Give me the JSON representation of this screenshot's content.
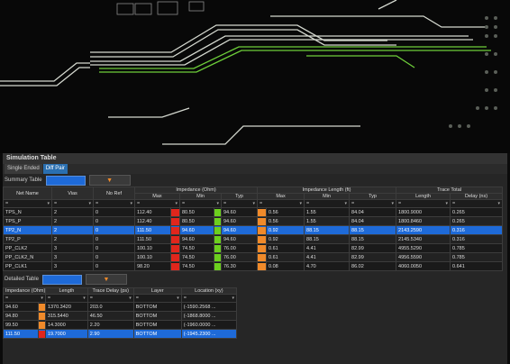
{
  "panel": {
    "title": "Simulation Table",
    "tabs": [
      {
        "label": "Single Ended"
      },
      {
        "label": "Diff Pair"
      }
    ],
    "summary_label": "Summary Table",
    "detailed_label": "Detailed Table"
  },
  "summary": {
    "headers": {
      "net_name": "Net Name",
      "vias": "Vias",
      "no_ref": "No Ref",
      "impedance_group": "Impedance (Ohm)",
      "max": "Max",
      "min": "Min",
      "typ": "Typ",
      "length_group": "Impedance Length (ft)",
      "trace_total": "Trace Total",
      "length": "Length",
      "delay": "Delay (ns)"
    },
    "filter_symbol": "=",
    "rows": [
      {
        "net": "TPS_N",
        "vias": "2",
        "noref": "0",
        "imax": "112.40",
        "iminv": "80.50",
        "ityp": "94.60",
        "lmax": "0.56",
        "lmin": "1.55",
        "ltyp": "84.04",
        "len": "1800.9000",
        "delay": "0.265"
      },
      {
        "net": "TPS_P",
        "vias": "2",
        "noref": "0",
        "imax": "112.40",
        "iminv": "80.50",
        "ityp": "94.60",
        "lmax": "0.56",
        "lmin": "1.55",
        "ltyp": "84.04",
        "len": "1800.8460",
        "delay": "0.265"
      },
      {
        "net": "TP2_N",
        "vias": "2",
        "noref": "0",
        "imax": "111.50",
        "iminv": "94.60",
        "ityp": "94.60",
        "lmax": "0.92",
        "lmin": "88.15",
        "ltyp": "88.15",
        "len": "2143.2590",
        "delay": "0.316"
      },
      {
        "net": "TP2_P",
        "vias": "2",
        "noref": "0",
        "imax": "111.50",
        "iminv": "94.60",
        "ityp": "94.60",
        "lmax": "0.92",
        "lmin": "88.15",
        "ltyp": "88.15",
        "len": "2145.5340",
        "delay": "0.316"
      },
      {
        "net": "PP_CLK2",
        "vias": "3",
        "noref": "0",
        "imax": "100.10",
        "iminv": "74.50",
        "ityp": "76.00",
        "lmax": "0.61",
        "lmin": "4.41",
        "ltyp": "82.99",
        "len": "4955.5290",
        "delay": "0.785"
      },
      {
        "net": "PP_CLK2_N",
        "vias": "3",
        "noref": "0",
        "imax": "100.10",
        "iminv": "74.50",
        "ityp": "76.00",
        "lmax": "0.61",
        "lmin": "4.41",
        "ltyp": "82.99",
        "len": "4956.5590",
        "delay": "0.785"
      },
      {
        "net": "PP_CLK1",
        "vias": "3",
        "noref": "0",
        "imax": "98.20",
        "iminv": "74.50",
        "ityp": "76.30",
        "lmax": "0.08",
        "lmin": "4.70",
        "ltyp": "86.02",
        "len": "4060.0050",
        "delay": "0.641"
      }
    ],
    "selected_row": 2
  },
  "detail": {
    "headers": {
      "impedance": "Impedance (Ohm)",
      "length": "Length",
      "trace_delay": "Trace Delay (ps)",
      "layer": "Layer",
      "location": "Location (xy)"
    },
    "rows": [
      {
        "imp": "94.60",
        "len": "1370.3420",
        "delay": "203.0",
        "layer": "BOTTOM",
        "loc": "(-1590.2568 ..."
      },
      {
        "imp": "94.80",
        "len": "315.5440",
        "delay": "46.50",
        "layer": "BOTTOM",
        "loc": "(-1868.8000 ..."
      },
      {
        "imp": "99.50",
        "len": "14.3000",
        "delay": "2.20",
        "layer": "BOTTOM",
        "loc": "(-1960.0000 ..."
      },
      {
        "imp": "111.50",
        "len": "19.7000",
        "delay": "2.90",
        "layer": "BOTTOM",
        "loc": "(-1945.2300 ..."
      }
    ],
    "selected_row": 3
  },
  "colors": {
    "accent": "#1e6ad8",
    "red": "#e0261c",
    "orange": "#f08a2a",
    "green": "#6ccf1e",
    "trace": "#d9ddd6"
  }
}
